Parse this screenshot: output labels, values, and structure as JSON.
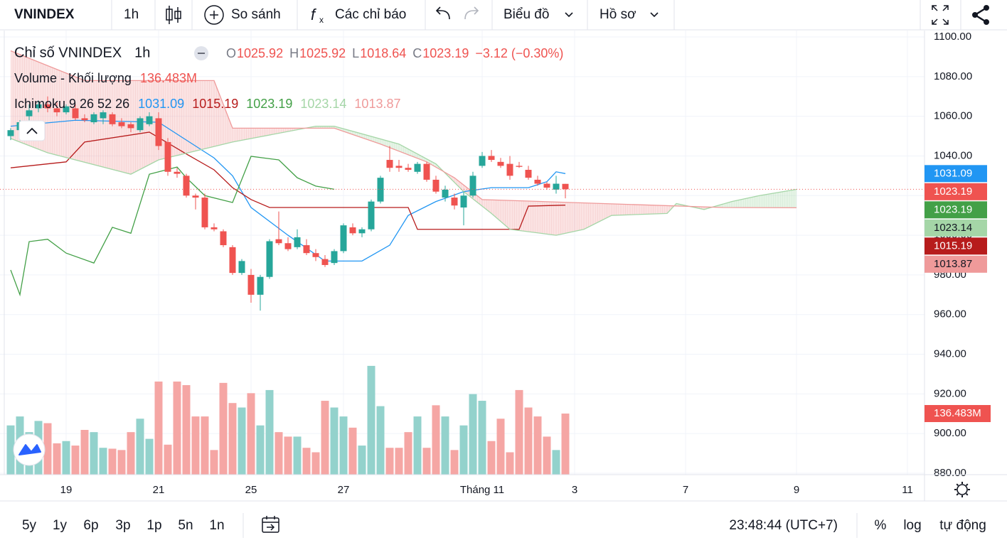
{
  "toolbar": {
    "symbol": "VNINDEX",
    "interval": "1h",
    "compare": "So sánh",
    "indicators": "Các chỉ báo",
    "chart_type": "Biểu đồ",
    "profile": "Hồ sơ"
  },
  "chart_data": {
    "type": "candlestick",
    "title": "Chỉ số VNINDEX",
    "interval": "1h",
    "ohlc_keys": [
      "O",
      "H",
      "L",
      "C"
    ],
    "change": "−3.12 (−0.30%)",
    "up_color": "#26a69a",
    "down_color": "#ef5350",
    "open": [
      1050,
      1053,
      1060,
      1064,
      1066,
      1064,
      1062,
      1064,
      1059,
      1057,
      1059,
      1061,
      1057,
      1056,
      1053,
      1056,
      1059,
      1047,
      1032,
      1030,
      1020,
      1019,
      1004,
      1002,
      994,
      981,
      980,
      970,
      979,
      998,
      996,
      994,
      995,
      991,
      988,
      986,
      992,
      1004,
      1001,
      1003,
      1017,
      1038,
      1035,
      1034,
      1032,
      1036,
      1028,
      1019,
      1019,
      1014,
      1020,
      1035,
      1040,
      1037,
      1036,
      1035,
      1033,
      1028,
      1026,
      1023,
      1025.92
    ],
    "high": [
      1054,
      1058,
      1066,
      1068,
      1070,
      1067,
      1066,
      1066,
      1061,
      1062,
      1063,
      1062,
      1059,
      1057,
      1060,
      1062,
      1062,
      1049,
      1034,
      1031,
      1021,
      1021,
      1006,
      1003,
      995,
      988,
      983,
      980,
      998,
      1012,
      999,
      1003,
      998,
      993,
      990,
      993,
      1006,
      1006,
      1004,
      1018,
      1030,
      1045,
      1038,
      1036,
      1037,
      1037,
      1030,
      1025,
      1021,
      1022,
      1032,
      1042,
      1043,
      1039,
      1040,
      1037,
      1035,
      1030,
      1027,
      1030,
      1025.92
    ],
    "low": [
      1048,
      1052,
      1058,
      1062,
      1062,
      1060,
      1061,
      1058,
      1057,
      1056,
      1056,
      1055,
      1054,
      1052,
      1052,
      1055,
      1043,
      1030,
      1029,
      1019,
      1013,
      1003,
      1002,
      994,
      980,
      980,
      966,
      962,
      978,
      995,
      992,
      993,
      990,
      987,
      984,
      985,
      991,
      1000,
      999,
      1002,
      1016,
      1032,
      1032,
      1032,
      1031,
      1027,
      1021,
      1017,
      1013,
      1005,
      1019,
      1034,
      1037,
      1034,
      1028,
      1034,
      1028,
      1025,
      1023,
      1021,
      1018.64
    ],
    "close": [
      1053,
      1057,
      1063,
      1066,
      1064,
      1062,
      1065,
      1059,
      1058,
      1061,
      1062,
      1056,
      1055,
      1054,
      1059,
      1060,
      1045,
      1032,
      1031,
      1020,
      1019,
      1004,
      1003,
      995,
      981,
      987,
      970,
      979,
      997,
      996,
      993,
      999,
      991,
      989,
      985,
      992,
      1005,
      1001,
      1003,
      1017,
      1029,
      1034,
      1034,
      1033,
      1036,
      1028,
      1022,
      1023,
      1015,
      1020,
      1030,
      1040,
      1038,
      1035,
      1030,
      1034.5,
      1029,
      1026,
      1024,
      1026,
      1023.19
    ],
    "volume": {
      "name": "Volume - Khối lượng",
      "last_label": "136.483M",
      "ylim": [
        0,
        400
      ],
      "values": [
        110,
        130,
        95,
        120,
        115,
        70,
        75,
        65,
        100,
        95,
        60,
        58,
        55,
        95,
        125,
        80,
        208,
        67,
        208,
        200,
        130,
        130,
        55,
        205,
        160,
        150,
        182,
        110,
        189,
        95,
        85,
        85,
        60,
        50,
        165,
        150,
        130,
        105,
        65,
        243,
        153,
        60,
        60,
        95,
        130,
        60,
        155,
        130,
        55,
        110,
        180,
        165,
        75,
        125,
        50,
        189,
        150,
        130,
        85,
        55,
        136.483
      ]
    },
    "ichimoku": {
      "name": "Ichimoku 9 26 52 26",
      "series": [
        {
          "color": "#2196f3",
          "x": [
            0,
            7,
            16,
            19,
            22,
            24,
            26,
            30,
            34,
            38,
            41,
            43,
            46,
            49,
            52,
            56,
            58,
            59,
            60
          ],
          "values": [
            1055,
            1058,
            1057,
            1048,
            1039,
            1030,
            1014,
            1000,
            987,
            987,
            995,
            1010,
            1017,
            1022,
            1024,
            1024,
            1027,
            1032,
            1031.09
          ]
        },
        {
          "color": "#b71c1c",
          "x": [
            0,
            6,
            8,
            15,
            19,
            22,
            24,
            26,
            28,
            43,
            44,
            53,
            55,
            56,
            60
          ],
          "values": [
            1034,
            1037,
            1047,
            1052,
            1041,
            1033,
            1024,
            1018,
            1014,
            1014,
            1003,
            1003,
            1003,
            1014.7,
            1015.19
          ]
        },
        {
          "color": "#43a047",
          "x": [
            0,
            1,
            2,
            4,
            6,
            9,
            11,
            13,
            15,
            18,
            19,
            21,
            24,
            26,
            29,
            31,
            33,
            35
          ],
          "values": [
            982.5,
            970,
            996.8,
            998,
            991,
            986,
            1004,
            1001,
            1030.8,
            1034.4,
            1029,
            1020,
            1016.5,
            1039.8,
            1038,
            1029,
            1024.8,
            1023.19
          ]
        },
        {
          "color": "#a5d6a7",
          "x": [
            0,
            4,
            13,
            16,
            24,
            33,
            35,
            42,
            46,
            49,
            52,
            54,
            59,
            62,
            65,
            71,
            72,
            75,
            78,
            81,
            85
          ],
          "values": [
            1048.8,
            1041.6,
            1030.8,
            1038,
            1047,
            1055,
            1055,
            1046,
            1036,
            1022,
            1011,
            1003,
            1000,
            1003,
            1010,
            1011,
            1016,
            1013,
            1017,
            1020,
            1023.14
          ]
        },
        {
          "color": "#ef9a9a",
          "x": [
            0,
            8,
            22,
            24,
            35,
            40,
            45,
            48,
            51,
            77,
            85
          ],
          "values": [
            1093,
            1078,
            1078,
            1054,
            1054,
            1046,
            1037,
            1029,
            1018,
            1014,
            1013.87
          ]
        }
      ]
    },
    "ylim": [
      880,
      1100
    ],
    "yticks": [
      {
        "value": 1100,
        "label": "1100.00"
      },
      {
        "value": 1080,
        "label": "1080.00"
      },
      {
        "value": 1060,
        "label": "1060.00"
      },
      {
        "value": 1040,
        "label": "1040.00"
      },
      {
        "value": 1020,
        "label": "1020.00"
      },
      {
        "value": 1000,
        "label": "1000.00"
      },
      {
        "value": 980,
        "label": "980.00"
      },
      {
        "value": 960,
        "label": "960.00"
      },
      {
        "value": 940,
        "label": "940.00"
      },
      {
        "value": 920,
        "label": "920.00"
      },
      {
        "value": 900,
        "label": "900.00"
      },
      {
        "value": 880,
        "label": "880.00"
      }
    ],
    "xticks": [
      {
        "value": 6,
        "label": "19"
      },
      {
        "value": 16,
        "label": "21"
      },
      {
        "value": 26,
        "label": "25"
      },
      {
        "value": 36,
        "label": "27"
      },
      {
        "value": 51,
        "label": "Tháng 11"
      },
      {
        "value": 61,
        "label": "3"
      },
      {
        "value": 73,
        "label": "7"
      },
      {
        "value": 85,
        "label": "9"
      },
      {
        "value": 97,
        "label": "11"
      }
    ],
    "grid": true
  },
  "bottom_bar": {
    "ranges": [
      "5y",
      "1y",
      "6p",
      "3p",
      "1p",
      "5n",
      "1n"
    ],
    "clock": "23:48:44 (UTC+7)",
    "percent": "%",
    "log": "log",
    "auto": "tự động"
  }
}
